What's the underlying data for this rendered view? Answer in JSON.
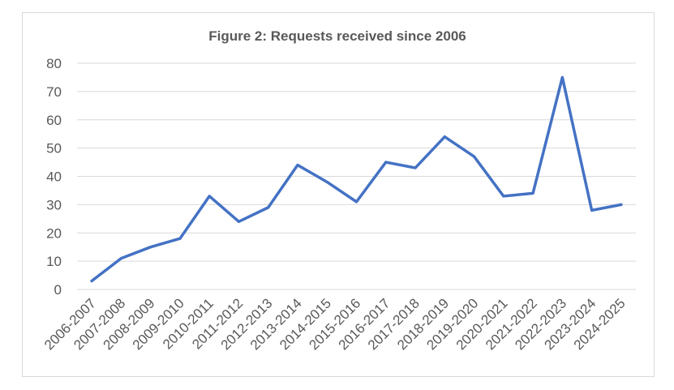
{
  "chart_data": {
    "type": "line",
    "title": "Figure 2: Requests received since 2006",
    "xlabel": "",
    "ylabel": "",
    "categories": [
      "2006-2007",
      "2007-2008",
      "2008-2009",
      "2009-2010",
      "2010-2011",
      "2011-2012",
      "2012-2013",
      "2013-2014",
      "2014-2015",
      "2015-2016",
      "2016-2017",
      "2017-2018",
      "2018-2019",
      "2019-2020",
      "2020-2021",
      "2021-2022",
      "2022-2023",
      "2023-2024",
      "2024-2025"
    ],
    "series": [
      {
        "values": [
          3,
          11,
          15,
          18,
          33,
          24,
          29,
          44,
          38,
          31,
          45,
          43,
          54,
          47,
          33,
          34,
          75,
          28,
          30
        ],
        "color": "#4472C4"
      }
    ],
    "ylim": [
      0,
      80
    ],
    "yticks": [
      0,
      10,
      20,
      30,
      40,
      50,
      60,
      70,
      80
    ],
    "grid": true,
    "legend": "none"
  }
}
